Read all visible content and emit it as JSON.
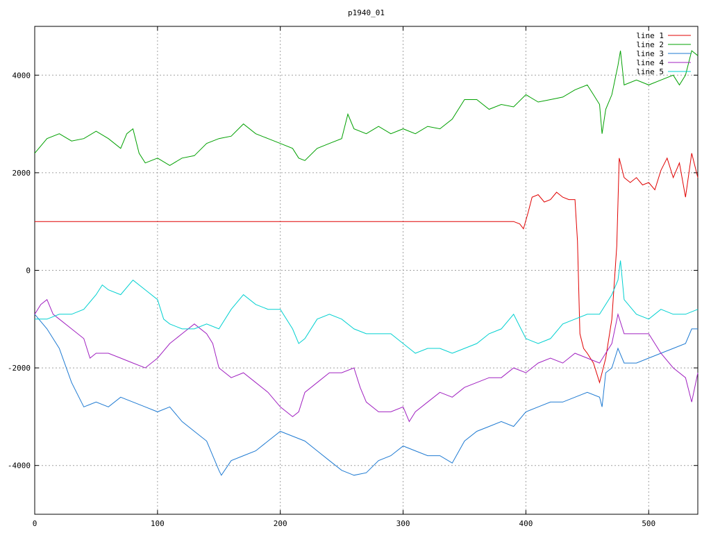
{
  "chart_data": {
    "type": "line",
    "title": "p1940_01",
    "xlabel": "",
    "ylabel": "",
    "xlim": [
      0,
      540
    ],
    "ylim": [
      -5000,
      5000
    ],
    "x_ticks": [
      0,
      100,
      200,
      300,
      400,
      500
    ],
    "y_ticks": [
      -4000,
      -2000,
      0,
      2000,
      4000
    ],
    "y_tick_labels": [
      "-4000",
      "-2000",
      "0",
      "2000",
      "4000"
    ],
    "grid": true,
    "legend_position": "top-right",
    "series": [
      {
        "name": "line 1",
        "color": "#e00000",
        "x": [
          0,
          50,
          100,
          150,
          200,
          250,
          300,
          350,
          390,
          395,
          398,
          402,
          405,
          410,
          415,
          420,
          425,
          430,
          435,
          440,
          442,
          444,
          447,
          450,
          455,
          460,
          465,
          470,
          474,
          476,
          480,
          485,
          490,
          495,
          500,
          505,
          510,
          515,
          520,
          525,
          530,
          535,
          540
        ],
        "y": [
          1000,
          1000,
          1000,
          1000,
          1000,
          1000,
          1000,
          1000,
          1000,
          950,
          850,
          1200,
          1500,
          1550,
          1400,
          1450,
          1600,
          1500,
          1450,
          1450,
          600,
          -1300,
          -1600,
          -1700,
          -1900,
          -2300,
          -1800,
          -1000,
          500,
          2300,
          1900,
          1800,
          1900,
          1750,
          1800,
          1650,
          2050,
          2300,
          1900,
          2200,
          1500,
          2400,
          1900
        ]
      },
      {
        "name": "line 2",
        "color": "#00a000",
        "x": [
          0,
          10,
          20,
          30,
          40,
          50,
          60,
          70,
          75,
          80,
          85,
          90,
          100,
          110,
          120,
          130,
          140,
          150,
          160,
          170,
          180,
          190,
          200,
          210,
          215,
          220,
          230,
          240,
          250,
          255,
          260,
          270,
          280,
          290,
          300,
          310,
          320,
          330,
          340,
          350,
          360,
          370,
          380,
          390,
          400,
          410,
          420,
          430,
          440,
          450,
          455,
          460,
          462,
          465,
          470,
          475,
          477,
          480,
          490,
          500,
          510,
          520,
          525,
          530,
          535,
          540
        ],
        "y": [
          2400,
          2700,
          2800,
          2650,
          2700,
          2850,
          2700,
          2500,
          2800,
          2900,
          2400,
          2200,
          2300,
          2150,
          2300,
          2350,
          2600,
          2700,
          2750,
          3000,
          2800,
          2700,
          2600,
          2500,
          2300,
          2250,
          2500,
          2600,
          2700,
          3200,
          2900,
          2800,
          2950,
          2800,
          2900,
          2800,
          2950,
          2900,
          3100,
          3500,
          3500,
          3300,
          3400,
          3350,
          3600,
          3450,
          3500,
          3550,
          3700,
          3800,
          3600,
          3400,
          2800,
          3300,
          3600,
          4200,
          4500,
          3800,
          3900,
          3800,
          3900,
          4000,
          3800,
          4000,
          4500,
          4400
        ]
      },
      {
        "name": "line 3",
        "color": "#1e7ad2",
        "x": [
          0,
          10,
          20,
          30,
          40,
          50,
          60,
          70,
          80,
          90,
          100,
          110,
          120,
          130,
          140,
          150,
          152,
          160,
          170,
          180,
          190,
          200,
          210,
          220,
          230,
          240,
          250,
          260,
          270,
          280,
          290,
          300,
          310,
          320,
          330,
          340,
          350,
          360,
          370,
          380,
          390,
          400,
          410,
          420,
          430,
          440,
          450,
          460,
          462,
          465,
          470,
          475,
          480,
          490,
          500,
          510,
          520,
          530,
          535,
          540
        ],
        "y": [
          -900,
          -1200,
          -1600,
          -2300,
          -2800,
          -2700,
          -2800,
          -2600,
          -2700,
          -2800,
          -2900,
          -2800,
          -3100,
          -3300,
          -3500,
          -4100,
          -4200,
          -3900,
          -3800,
          -3700,
          -3500,
          -3300,
          -3400,
          -3500,
          -3700,
          -3900,
          -4100,
          -4200,
          -4150,
          -3900,
          -3800,
          -3600,
          -3700,
          -3800,
          -3800,
          -3950,
          -3500,
          -3300,
          -3200,
          -3100,
          -3200,
          -2900,
          -2800,
          -2700,
          -2700,
          -2600,
          -2500,
          -2600,
          -2800,
          -2100,
          -2000,
          -1600,
          -1900,
          -1900,
          -1800,
          -1700,
          -1600,
          -1500,
          -1200,
          -1200
        ]
      },
      {
        "name": "line 4",
        "color": "#a020c0",
        "x": [
          0,
          5,
          10,
          15,
          20,
          30,
          40,
          45,
          50,
          60,
          70,
          80,
          90,
          100,
          110,
          120,
          130,
          140,
          145,
          150,
          160,
          170,
          180,
          190,
          200,
          210,
          215,
          220,
          230,
          240,
          250,
          260,
          265,
          270,
          280,
          290,
          300,
          305,
          310,
          320,
          330,
          340,
          350,
          360,
          370,
          380,
          390,
          400,
          410,
          420,
          430,
          440,
          450,
          460,
          465,
          470,
          475,
          480,
          490,
          500,
          510,
          520,
          530,
          535,
          540
        ],
        "y": [
          -900,
          -700,
          -600,
          -900,
          -1000,
          -1200,
          -1400,
          -1800,
          -1700,
          -1700,
          -1800,
          -1900,
          -2000,
          -1800,
          -1500,
          -1300,
          -1100,
          -1300,
          -1500,
          -2000,
          -2200,
          -2100,
          -2300,
          -2500,
          -2800,
          -3000,
          -2900,
          -2500,
          -2300,
          -2100,
          -2100,
          -2000,
          -2400,
          -2700,
          -2900,
          -2900,
          -2800,
          -3100,
          -2900,
          -2700,
          -2500,
          -2600,
          -2400,
          -2300,
          -2200,
          -2200,
          -2000,
          -2100,
          -1900,
          -1800,
          -1900,
          -1700,
          -1800,
          -1900,
          -1700,
          -1500,
          -900,
          -1300,
          -1300,
          -1300,
          -1700,
          -2000,
          -2200,
          -2700,
          -2100
        ]
      },
      {
        "name": "line 5",
        "color": "#00d0d0",
        "x": [
          0,
          10,
          20,
          30,
          40,
          50,
          55,
          60,
          70,
          80,
          90,
          100,
          105,
          110,
          120,
          130,
          140,
          150,
          160,
          170,
          180,
          190,
          200,
          210,
          215,
          220,
          230,
          240,
          250,
          260,
          270,
          280,
          290,
          300,
          310,
          320,
          330,
          340,
          350,
          360,
          370,
          380,
          390,
          400,
          410,
          420,
          430,
          440,
          450,
          460,
          470,
          475,
          477,
          480,
          490,
          500,
          510,
          520,
          530,
          540
        ],
        "y": [
          -1000,
          -1000,
          -900,
          -900,
          -800,
          -500,
          -300,
          -400,
          -500,
          -200,
          -400,
          -600,
          -1000,
          -1100,
          -1200,
          -1200,
          -1100,
          -1200,
          -800,
          -500,
          -700,
          -800,
          -800,
          -1200,
          -1500,
          -1400,
          -1000,
          -900,
          -1000,
          -1200,
          -1300,
          -1300,
          -1300,
          -1500,
          -1700,
          -1600,
          -1600,
          -1700,
          -1600,
          -1500,
          -1300,
          -1200,
          -900,
          -1400,
          -1500,
          -1400,
          -1100,
          -1000,
          -900,
          -900,
          -500,
          -200,
          200,
          -600,
          -900,
          -1000,
          -800,
          -900,
          -900,
          -800
        ]
      }
    ]
  }
}
